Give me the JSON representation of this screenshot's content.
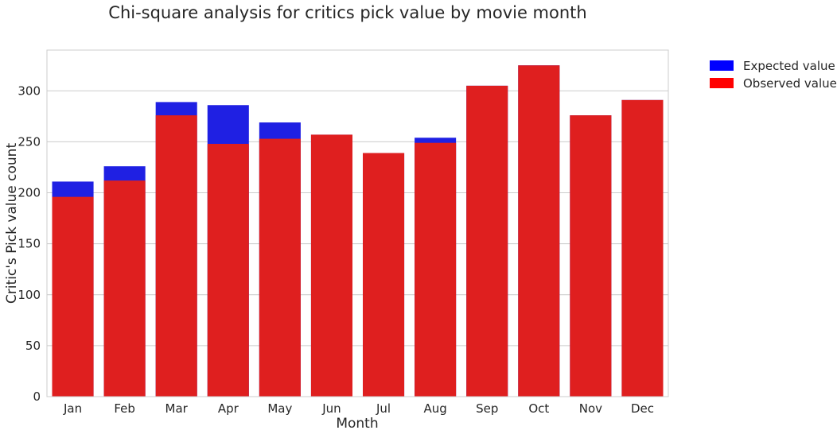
{
  "chart_data": {
    "type": "bar",
    "title": "Chi-square analysis for critics pick value by movie month",
    "xlabel": "Month",
    "ylabel": "Critic's Pick value count",
    "categories": [
      "Jan",
      "Feb",
      "Mar",
      "Apr",
      "May",
      "Jun",
      "Jul",
      "Aug",
      "Sep",
      "Oct",
      "Nov",
      "Dec"
    ],
    "series": [
      {
        "name": "Expected value",
        "color": "#0000ff",
        "values": [
          211,
          226,
          289,
          286,
          269,
          257,
          239,
          254,
          305,
          325,
          276,
          291
        ]
      },
      {
        "name": "Observed value",
        "color": "#ff0000",
        "values": [
          196,
          212,
          276,
          248,
          253,
          257,
          239,
          249,
          305,
          325,
          276,
          291
        ]
      }
    ],
    "yticks": [
      0,
      50,
      100,
      150,
      200,
      250,
      300
    ],
    "ylim": [
      0,
      340
    ],
    "grid": true,
    "legend_position": "outside-top-right"
  }
}
